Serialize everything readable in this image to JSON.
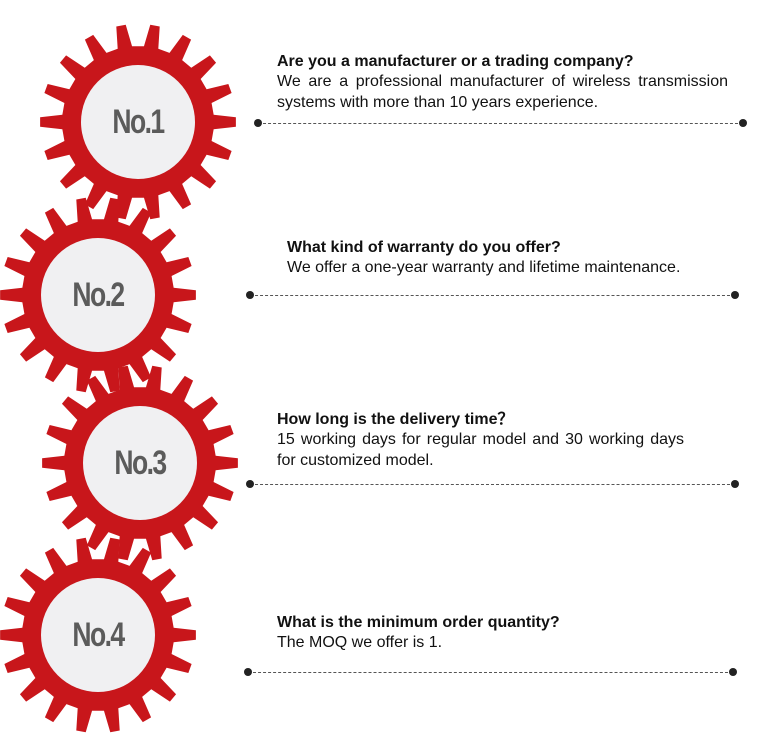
{
  "colors": {
    "gear": "#c8161b",
    "gear_center": "#f0f0f2",
    "label": "#5b5b5b"
  },
  "items": [
    {
      "label": "No.1",
      "question": "Are you a manufacturer or a trading company?",
      "answer": "We are a professional manufacturer of wireless transmission systems with more than 10 years experience."
    },
    {
      "label": "No.2",
      "question": "What kind of warranty do you offer?",
      "answer": "We offer a one-year warranty and lifetime maintenance."
    },
    {
      "label": "No.3",
      "question": "How long is the delivery time？",
      "answer": "15 working days for regular model and 30 working days for customized model."
    },
    {
      "label": "No.4",
      "question": "What is the minimum order quantity?",
      "answer": "The MOQ we offer is 1."
    }
  ]
}
